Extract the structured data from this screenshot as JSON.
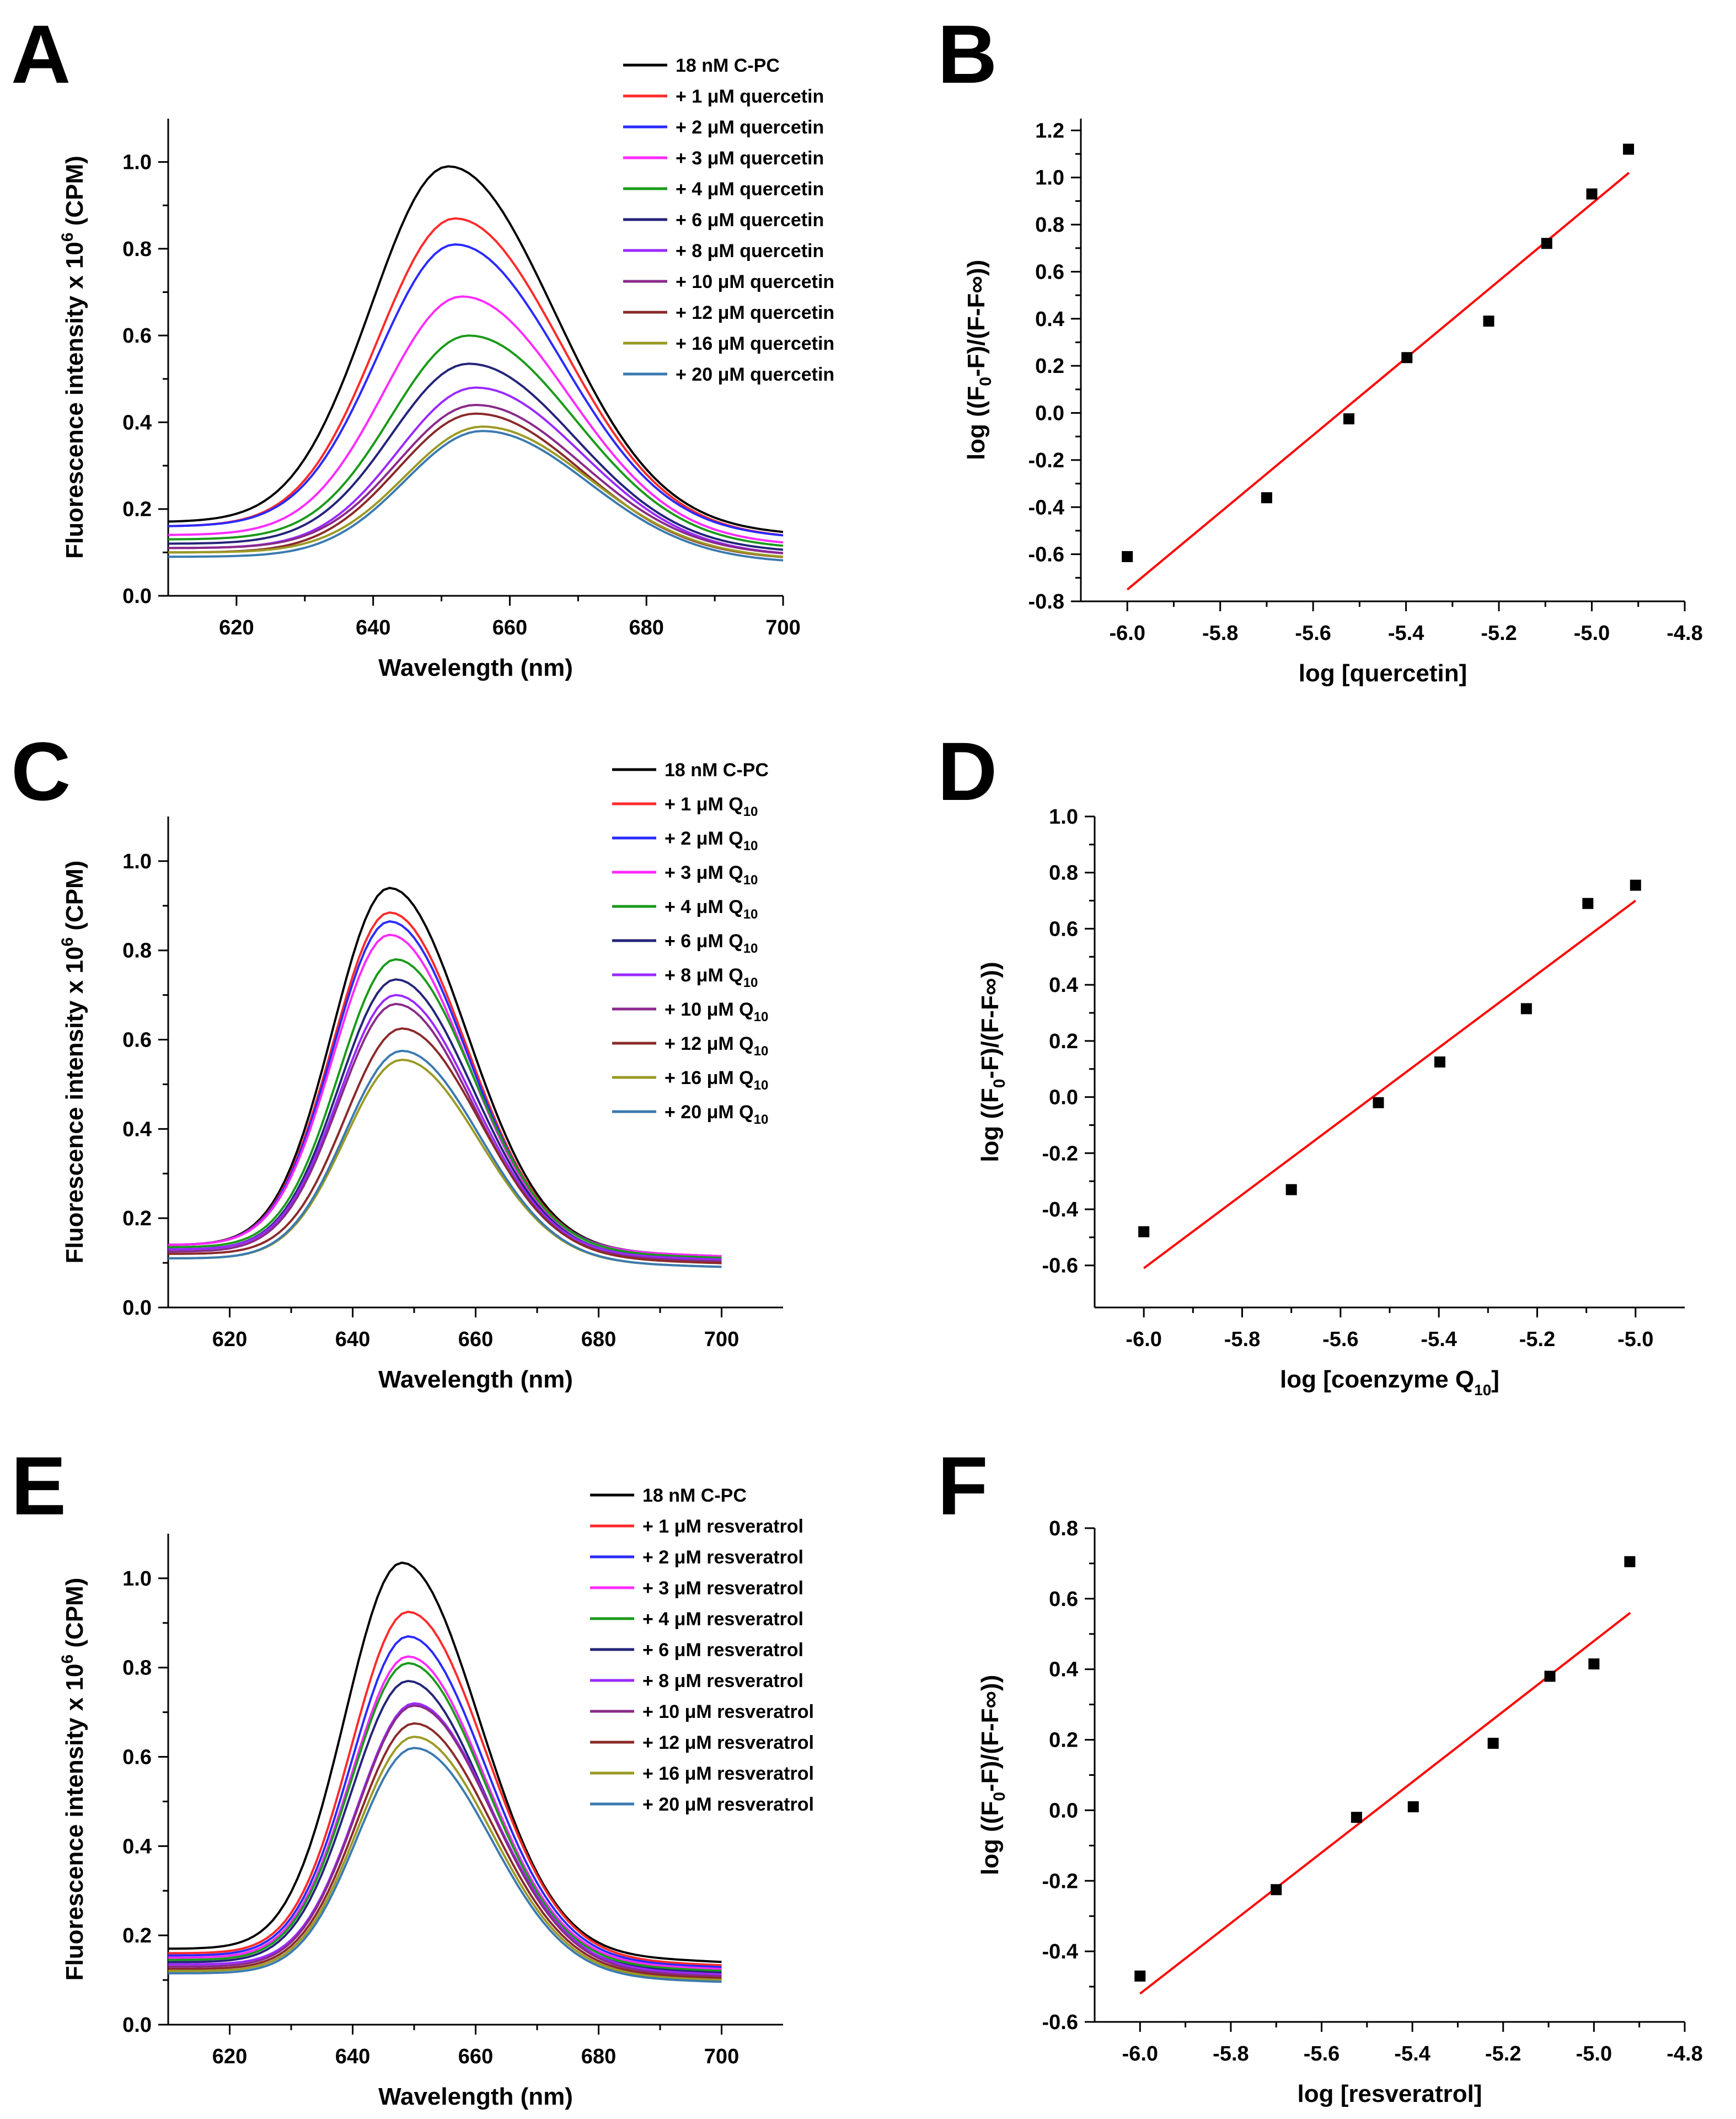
{
  "chart_data": [
    {
      "id": "A",
      "type": "line",
      "label": "A",
      "xlabel": "Wavelength (nm)",
      "ylabel": "Fluorescence intensity x 10^6 (CPM)",
      "ylabel_main": "Fluorescence intensity x 10",
      "ylabel_sup": "6",
      "ylabel_tail": " (CPM)",
      "xlim": [
        610,
        700
      ],
      "ylim": [
        0.0,
        1.1
      ],
      "xticks": [
        620,
        640,
        660,
        680,
        700
      ],
      "yticks": [
        "0.0",
        "0.2",
        "0.4",
        "0.6",
        "0.8",
        "1.0"
      ],
      "series": [
        {
          "name": "18 nM C-PC",
          "color": "#000000",
          "base": 0.17,
          "peak": 0.99,
          "center": 651,
          "width": 16
        },
        {
          "name": "+ 1 μM quercetin",
          "color": "#ff2a2a",
          "base": 0.16,
          "peak": 0.87,
          "center": 652,
          "width": 16
        },
        {
          "name": "+ 2 μM quercetin",
          "color": "#2a2aff",
          "base": 0.16,
          "peak": 0.81,
          "center": 652,
          "width": 16
        },
        {
          "name": "+ 3 μM quercetin",
          "color": "#ff2aff",
          "base": 0.14,
          "peak": 0.69,
          "center": 653,
          "width": 16
        },
        {
          "name": "+ 4 μM quercetin",
          "color": "#1a9a1a",
          "base": 0.13,
          "peak": 0.6,
          "center": 654,
          "width": 16
        },
        {
          "name": "+ 6 μM quercetin",
          "color": "#24247a",
          "base": 0.12,
          "peak": 0.535,
          "center": 654,
          "width": 16
        },
        {
          "name": "+ 8 μM quercetin",
          "color": "#9a2aff",
          "base": 0.11,
          "peak": 0.48,
          "center": 655,
          "width": 16
        },
        {
          "name": "+ 10 μM quercetin",
          "color": "#8a2a8a",
          "base": 0.11,
          "peak": 0.44,
          "center": 655,
          "width": 16
        },
        {
          "name": "+ 12 μM quercetin",
          "color": "#8a2a2a",
          "base": 0.1,
          "peak": 0.42,
          "center": 655,
          "width": 16
        },
        {
          "name": "+ 16 μM quercetin",
          "color": "#9a9a24",
          "base": 0.1,
          "peak": 0.39,
          "center": 656,
          "width": 16
        },
        {
          "name": "+ 20 μM quercetin",
          "color": "#3a7ab0",
          "base": 0.09,
          "peak": 0.38,
          "center": 656,
          "width": 16
        }
      ]
    },
    {
      "id": "B",
      "type": "scatter",
      "label": "B",
      "xlabel": "log [quercetin]",
      "ylabel_main": "log ((F",
      "ylabel_sub": "0",
      "ylabel_tail": "-F)/(F-F∞))",
      "xlim": [
        -6.1,
        -4.8
      ],
      "ylim": [
        -0.8,
        1.25
      ],
      "xticks": [
        "-6.0",
        "-5.8",
        "-5.6",
        "-5.4",
        "-5.2",
        "-5.0",
        "-4.8"
      ],
      "yticks": [
        "-0.8",
        "-0.6",
        "-0.4",
        "-0.2",
        "0.0",
        "0.2",
        "0.4",
        "0.6",
        "0.8",
        "1.0",
        "1.2"
      ],
      "x": [
        -6.0,
        -5.7,
        -5.523,
        -5.398,
        -5.222,
        -5.097,
        -5.0,
        -4.921
      ],
      "y": [
        -0.61,
        -0.36,
        -0.025,
        0.235,
        0.39,
        0.72,
        0.93,
        1.12
      ],
      "fit": {
        "x": [
          -6.0,
          -4.92
        ],
        "y": [
          -0.75,
          1.02
        ],
        "color": "#ff0000"
      }
    },
    {
      "id": "C",
      "type": "line",
      "label": "C",
      "xlabel": "Wavelength (nm)",
      "ylabel_main": "Fluorescence intensity x 10",
      "ylabel_sup": "6",
      "ylabel_tail": " (CPM)",
      "xlim": [
        610,
        710
      ],
      "ylim": [
        0.0,
        1.1
      ],
      "xticks": [
        620,
        640,
        660,
        680,
        700
      ],
      "yticks": [
        "0.0",
        "0.2",
        "0.4",
        "0.6",
        "0.8",
        "1.0"
      ],
      "series": [
        {
          "name": "18 nM C-PC",
          "prefix": "18 nM C-PC",
          "sub": "",
          "color": "#000000",
          "base": 0.14,
          "peak": 0.94,
          "center": 646,
          "width": 13
        },
        {
          "name": "+ 1 μM Q10",
          "prefix": "+ 1 μM Q",
          "sub": "10",
          "color": "#ff2a2a",
          "base": 0.14,
          "peak": 0.885,
          "center": 646,
          "width": 13
        },
        {
          "name": "+ 2 μM Q10",
          "prefix": "+ 2 μM  Q",
          "sub": "10",
          "color": "#2a2aff",
          "base": 0.14,
          "peak": 0.865,
          "center": 646,
          "width": 13
        },
        {
          "name": "+ 3 μM Q10",
          "prefix": "+ 3 μM  Q",
          "sub": "10",
          "color": "#ff2aff",
          "base": 0.14,
          "peak": 0.835,
          "center": 646,
          "width": 13
        },
        {
          "name": "+ 4 μM Q10",
          "prefix": "+ 4 μM  Q",
          "sub": "10",
          "color": "#1a9a1a",
          "base": 0.135,
          "peak": 0.78,
          "center": 647,
          "width": 13
        },
        {
          "name": "+ 6 μM Q10",
          "prefix": "+ 6 μM  Q",
          "sub": "10",
          "color": "#24247a",
          "base": 0.13,
          "peak": 0.735,
          "center": 647,
          "width": 13
        },
        {
          "name": "+ 8 μM Q10",
          "prefix": "+ 8 μM  Q",
          "sub": "10",
          "color": "#9a2aff",
          "base": 0.13,
          "peak": 0.7,
          "center": 647,
          "width": 13
        },
        {
          "name": "+ 10 μM Q10",
          "prefix": "+ 10 μM Q",
          "sub": "10",
          "color": "#8a2a8a",
          "base": 0.125,
          "peak": 0.68,
          "center": 647,
          "width": 13
        },
        {
          "name": "+ 12 μM Q10",
          "prefix": "+ 12 μM Q",
          "sub": "10",
          "color": "#8a2a2a",
          "base": 0.12,
          "peak": 0.625,
          "center": 648,
          "width": 13
        },
        {
          "name": "+ 16 μM Q10",
          "prefix": "+ 16 μM Q",
          "sub": "10",
          "color": "#9a9a24",
          "base": 0.11,
          "peak": 0.555,
          "center": 648,
          "width": 13
        },
        {
          "name": "+ 20 μM Q10",
          "prefix": "+ 20 μM Q",
          "sub": "10",
          "color": "#3a7ab0",
          "base": 0.11,
          "peak": 0.575,
          "center": 648,
          "width": 13
        }
      ]
    },
    {
      "id": "D",
      "type": "scatter",
      "label": "D",
      "xlabel_main": "log [coenzyme Q",
      "xlabel_sub": "10",
      "xlabel_tail": "]",
      "ylabel_main": "log ((F",
      "ylabel_sub": "0",
      "ylabel_tail": "-F)/(F-F∞))",
      "xlim": [
        -6.1,
        -4.9
      ],
      "ylim": [
        -0.75,
        1.0
      ],
      "xticks": [
        "-6.0",
        "-5.8",
        "-5.6",
        "-5.4",
        "-5.2",
        "-5.0"
      ],
      "yticks": [
        "-0.6",
        "-0.4",
        "-0.2",
        "0.0",
        "0.2",
        "0.4",
        "0.6",
        "0.8",
        "1.0"
      ],
      "x": [
        -6.0,
        -5.7,
        -5.523,
        -5.398,
        -5.222,
        -5.097,
        -5.0
      ],
      "y": [
        -0.48,
        -0.33,
        -0.02,
        0.125,
        0.315,
        0.69,
        0.755
      ],
      "fit": {
        "x": [
          -6.0,
          -5.0
        ],
        "y": [
          -0.61,
          0.7
        ],
        "color": "#ff0000"
      }
    },
    {
      "id": "E",
      "type": "line",
      "label": "E",
      "xlabel": "Wavelength (nm)",
      "ylabel_main": "Fluorescence intensity x 10",
      "ylabel_sup": "6",
      "ylabel_tail": " (CPM)",
      "xlim": [
        610,
        710
      ],
      "ylim": [
        0.0,
        1.1
      ],
      "xticks": [
        620,
        640,
        660,
        680,
        700
      ],
      "yticks": [
        "0.0",
        "0.2",
        "0.4",
        "0.6",
        "0.8",
        "1.0"
      ],
      "series": [
        {
          "name": "18 nM  C-PC",
          "color": "#000000",
          "base": 0.17,
          "peak": 1.035,
          "center": 648,
          "width": 13
        },
        {
          "name": "+ 1 μM resveratrol",
          "color": "#ff2a2a",
          "base": 0.16,
          "peak": 0.925,
          "center": 649,
          "width": 13
        },
        {
          "name": "+ 2 μM resveratrol",
          "color": "#2a2aff",
          "base": 0.155,
          "peak": 0.87,
          "center": 649,
          "width": 13
        },
        {
          "name": "+ 3 μM resveratrol",
          "color": "#ff2aff",
          "base": 0.15,
          "peak": 0.825,
          "center": 649,
          "width": 13
        },
        {
          "name": "+ 4 μM resveratrol",
          "color": "#1a9a1a",
          "base": 0.145,
          "peak": 0.81,
          "center": 649,
          "width": 13
        },
        {
          "name": "+ 6 μM resveratrol",
          "color": "#24247a",
          "base": 0.14,
          "peak": 0.77,
          "center": 649,
          "width": 13
        },
        {
          "name": "+ 8 μM resveratrol",
          "color": "#9a2aff",
          "base": 0.135,
          "peak": 0.72,
          "center": 650,
          "width": 13
        },
        {
          "name": "+ 10 μM resveratrol",
          "color": "#8a2a8a",
          "base": 0.13,
          "peak": 0.715,
          "center": 650,
          "width": 13
        },
        {
          "name": "+ 12 μM resveratrol",
          "color": "#8a2a2a",
          "base": 0.125,
          "peak": 0.675,
          "center": 650,
          "width": 13
        },
        {
          "name": "+ 16 μM resveratrol",
          "color": "#9a9a24",
          "base": 0.12,
          "peak": 0.645,
          "center": 650,
          "width": 13
        },
        {
          "name": "+ 20 μM resveratrol",
          "color": "#3a7ab0",
          "base": 0.115,
          "peak": 0.62,
          "center": 650,
          "width": 13
        }
      ]
    },
    {
      "id": "F",
      "type": "scatter",
      "label": "F",
      "xlabel": "log [resveratrol]",
      "ylabel_main": "log ((F",
      "ylabel_sub": "0",
      "ylabel_tail": "-F)/(F-F∞))",
      "xlim": [
        -6.1,
        -4.8
      ],
      "ylim": [
        -0.6,
        0.8
      ],
      "xticks": [
        "-6.0",
        "-5.8",
        "-5.6",
        "-5.4",
        "-5.2",
        "-5.0",
        "-4.8"
      ],
      "yticks": [
        "-0.6",
        "-0.4",
        "-0.2",
        "0.0",
        "0.2",
        "0.4",
        "0.6",
        "0.8"
      ],
      "x": [
        -6.0,
        -5.7,
        -5.523,
        -5.398,
        -5.222,
        -5.097,
        -5.0,
        -4.921
      ],
      "y": [
        -0.47,
        -0.225,
        -0.02,
        0.01,
        0.19,
        0.38,
        0.415,
        0.705
      ],
      "fit": {
        "x": [
          -6.0,
          -4.92
        ],
        "y": [
          -0.52,
          0.56
        ],
        "color": "#ff0000"
      }
    }
  ]
}
